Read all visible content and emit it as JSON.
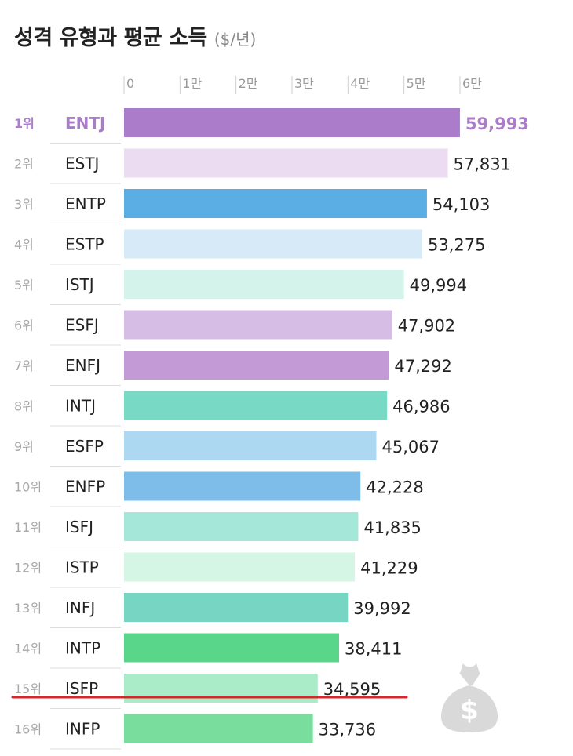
{
  "title": "성격 유형과 평균 소득",
  "unit": "($/년)",
  "chart_data": {
    "type": "bar",
    "orientation": "horizontal",
    "title": "성격 유형과 평균 소득",
    "unit": "($/년)",
    "xlim": [
      0,
      60000
    ],
    "ticks": [
      {
        "value": 0,
        "label": "0"
      },
      {
        "value": 10000,
        "label": "1만"
      },
      {
        "value": 20000,
        "label": "2만"
      },
      {
        "value": 30000,
        "label": "3만"
      },
      {
        "value": 40000,
        "label": "4만"
      },
      {
        "value": 50000,
        "label": "5만"
      },
      {
        "value": 60000,
        "label": "6만"
      }
    ],
    "bars": [
      {
        "rank": "1위",
        "type": "ENTJ",
        "value": 59993,
        "label": "59,993",
        "color": "#ab7cc9"
      },
      {
        "rank": "2위",
        "type": "ESTJ",
        "value": 57831,
        "label": "57,831",
        "color": "#ebdcf1"
      },
      {
        "rank": "3위",
        "type": "ENTP",
        "value": 54103,
        "label": "54,103",
        "color": "#5aaee3"
      },
      {
        "rank": "4위",
        "type": "ESTP",
        "value": 53275,
        "label": "53,275",
        "color": "#d6eaf8"
      },
      {
        "rank": "5위",
        "type": "ISTJ",
        "value": 49994,
        "label": "49,994",
        "color": "#d4f3ea"
      },
      {
        "rank": "6위",
        "type": "ESFJ",
        "value": 47902,
        "label": "47,902",
        "color": "#d6bde5"
      },
      {
        "rank": "7위",
        "type": "ENFJ",
        "value": 47292,
        "label": "47,292",
        "color": "#c39ad6"
      },
      {
        "rank": "8위",
        "type": "INTJ",
        "value": 46986,
        "label": "46,986",
        "color": "#78d9c4"
      },
      {
        "rank": "9위",
        "type": "ESFP",
        "value": 45067,
        "label": "45,067",
        "color": "#acd8f2"
      },
      {
        "rank": "10위",
        "type": "ENFP",
        "value": 42228,
        "label": "42,228",
        "color": "#7ebdea"
      },
      {
        "rank": "11위",
        "type": "ISFJ",
        "value": 41835,
        "label": "41,835",
        "color": "#a5e7d8"
      },
      {
        "rank": "12위",
        "type": "ISTP",
        "value": 41229,
        "label": "41,229",
        "color": "#d6f6e5"
      },
      {
        "rank": "13위",
        "type": "INFJ",
        "value": 39992,
        "label": "39,992",
        "color": "#76d6c3"
      },
      {
        "rank": "14위",
        "type": "INTP",
        "value": 38411,
        "label": "38,411",
        "color": "#5ad68a"
      },
      {
        "rank": "15위",
        "type": "ISFP",
        "value": 34595,
        "label": "34,595",
        "color": "#a9ecc7"
      },
      {
        "rank": "16위",
        "type": "INFP",
        "value": 33736,
        "label": "33,736",
        "color": "#79de9d"
      }
    ],
    "highlight": {
      "rank": "1위",
      "color": "#ab7cc9"
    },
    "annotation_color": "#d9262b"
  },
  "decoration": {
    "icon": "money-bag-icon",
    "symbol": "$",
    "color": "#d9d9d9"
  }
}
